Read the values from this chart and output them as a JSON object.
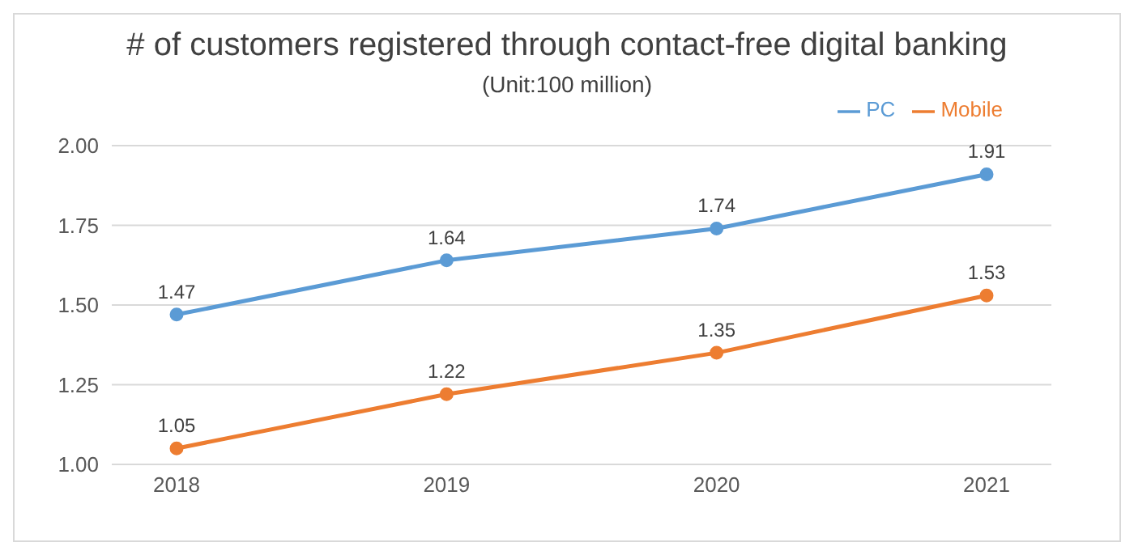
{
  "chart_data": {
    "type": "line",
    "title": "# of customers registered through contact-free digital banking",
    "subtitle": "(Unit:100 million)",
    "categories": [
      "2018",
      "2019",
      "2020",
      "2021"
    ],
    "series": [
      {
        "name": "PC",
        "color": "#5b9bd5",
        "values": [
          1.47,
          1.64,
          1.74,
          1.91
        ]
      },
      {
        "name": "Mobile",
        "color": "#ed7d31",
        "values": [
          1.05,
          1.22,
          1.35,
          1.53
        ]
      }
    ],
    "ylim": [
      1,
      2
    ],
    "yticks": [
      {
        "value": 1,
        "label": "1.00"
      },
      {
        "value": 1.25,
        "label": "1.25"
      },
      {
        "value": 1.5,
        "label": "1.50"
      },
      {
        "value": 1.75,
        "label": "1.75"
      },
      {
        "value": 2,
        "label": "2.00"
      }
    ],
    "grid": "y",
    "legend": "top right",
    "marker": "circle",
    "data_labels": true
  }
}
